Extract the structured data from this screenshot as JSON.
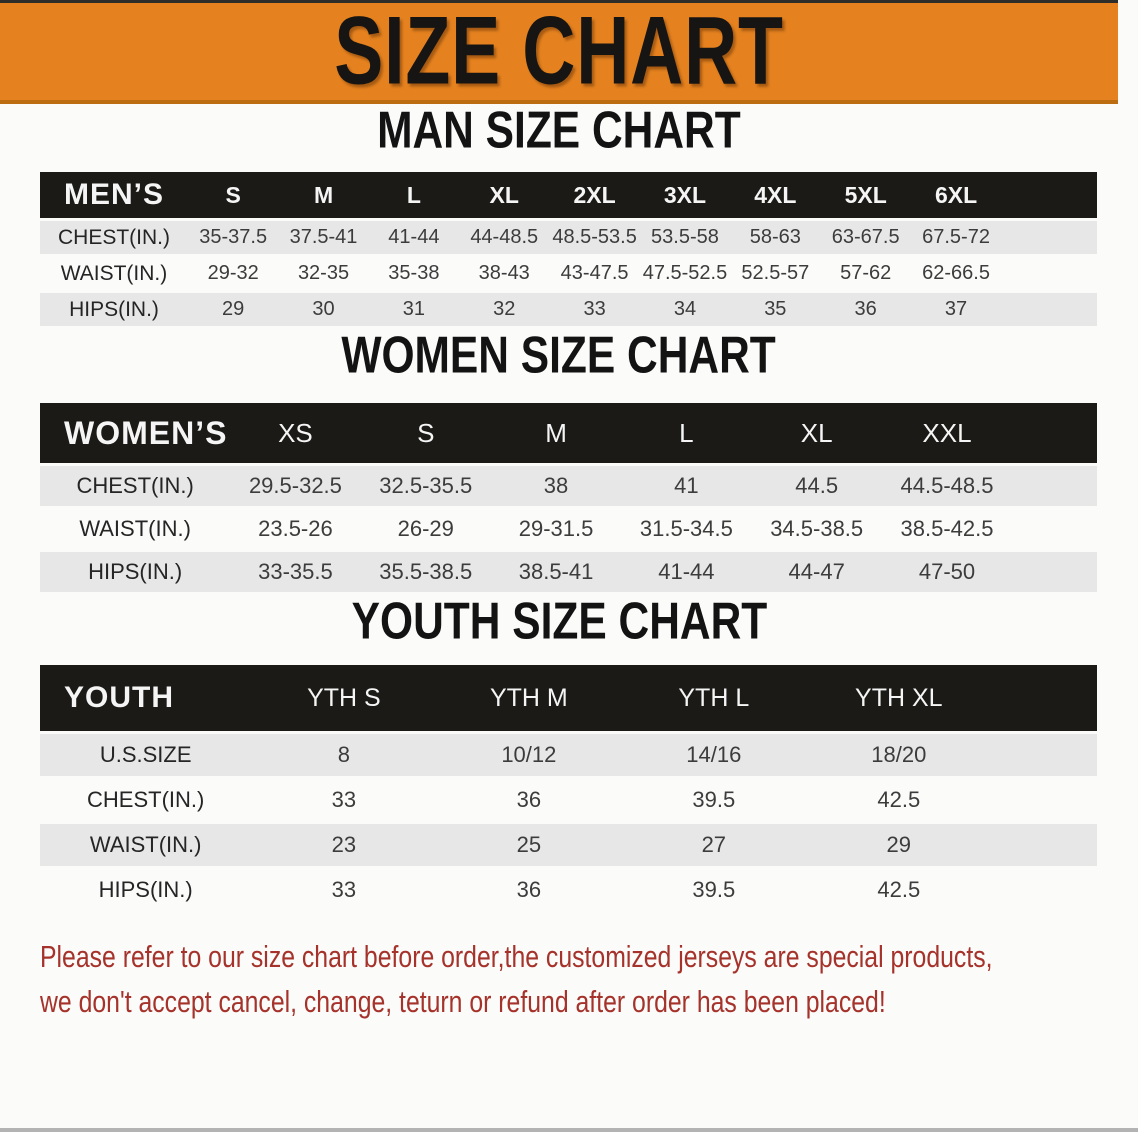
{
  "banner": {
    "title": "SIZE CHART"
  },
  "colors": {
    "banner_orange": "#E5821F",
    "banner_border_dark_orange": "#BC6D12",
    "header_bar_black": "#1B1A17",
    "row_stripe_gray": "#E7E7E7",
    "disclaimer_red": "#A5332B"
  },
  "sections": [
    {
      "heading": "MAN SIZE CHART",
      "table": {
        "label": "MEN’S",
        "columns": [
          "S",
          "M",
          "L",
          "XL",
          "2XL",
          "3XL",
          "4XL",
          "5XL",
          "6XL"
        ],
        "rows": [
          {
            "label": "CHEST(IN.)",
            "values": [
              "35-37.5",
              "37.5-41",
              "41-44",
              "44-48.5",
              "48.5-53.5",
              "53.5-58",
              "58-63",
              "63-67.5",
              "67.5-72"
            ]
          },
          {
            "label": "WAIST(IN.)",
            "values": [
              "29-32",
              "32-35",
              "35-38",
              "38-43",
              "43-47.5",
              "47.5-52.5",
              "52.5-57",
              "57-62",
              "62-66.5"
            ]
          },
          {
            "label": "HIPS(IN.)",
            "values": [
              "29",
              "30",
              "31",
              "32",
              "33",
              "34",
              "35",
              "36",
              "37"
            ]
          }
        ]
      }
    },
    {
      "heading": "WOMEN SIZE CHART",
      "table": {
        "label": "WOMEN’S",
        "columns": [
          "XS",
          "S",
          "M",
          "L",
          "XL",
          "XXL"
        ],
        "rows": [
          {
            "label": "CHEST(IN.)",
            "values": [
              "29.5-32.5",
              "32.5-35.5",
              "38",
              "41",
              "44.5",
              "44.5-48.5"
            ]
          },
          {
            "label": "WAIST(IN.)",
            "values": [
              "23.5-26",
              "26-29",
              "29-31.5",
              "31.5-34.5",
              "34.5-38.5",
              "38.5-42.5"
            ]
          },
          {
            "label": "HIPS(IN.)",
            "values": [
              "33-35.5",
              "35.5-38.5",
              "38.5-41",
              "41-44",
              "44-47",
              "47-50"
            ]
          }
        ]
      }
    },
    {
      "heading": "YOUTH SIZE CHART",
      "table": {
        "label": "YOUTH",
        "columns": [
          "YTH S",
          "YTH M",
          "YTH L",
          "YTH XL"
        ],
        "rows": [
          {
            "label": "U.S.SIZE",
            "values": [
              "8",
              "10/12",
              "14/16",
              "18/20"
            ]
          },
          {
            "label": "CHEST(IN.)",
            "values": [
              "33",
              "36",
              "39.5",
              "42.5"
            ]
          },
          {
            "label": "WAIST(IN.)",
            "values": [
              "23",
              "25",
              "27",
              "29"
            ]
          },
          {
            "label": "HIPS(IN.)",
            "values": [
              "33",
              "36",
              "39.5",
              "42.5"
            ]
          }
        ]
      }
    }
  ],
  "disclaimer": {
    "line1": "Please refer to our size chart before order,the customized jerseys are special products,",
    "line2": "we don't accept cancel, change, teturn or refund after order has been placed!"
  }
}
